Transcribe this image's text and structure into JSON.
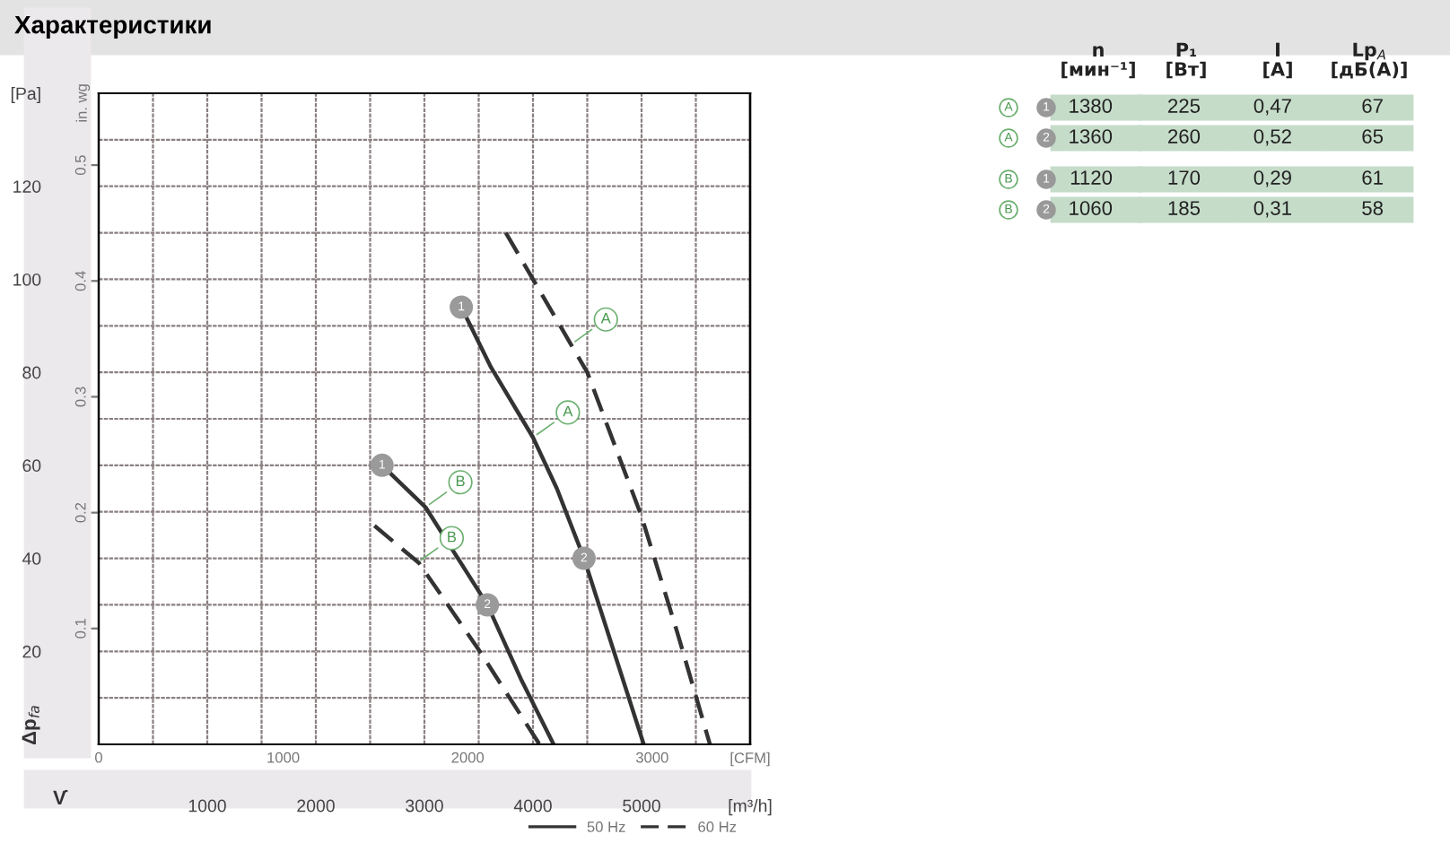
{
  "chart_data": [
    {
      "type": "line",
      "title": "Характеристики",
      "xlabel": "V̇",
      "ylabel": "Δp$_{fa}$",
      "y2label": "in. wg",
      "x2label": "[CFM]",
      "xlim": [
        0,
        6000
      ],
      "xticks": [
        {
          "value": 500,
          "label": null
        },
        1000,
        {
          "value": 1500,
          "label": null
        },
        2000,
        {
          "value": 2500,
          "label": null
        },
        3000,
        {
          "value": 3500,
          "label": null
        },
        4000,
        {
          "value": 4500,
          "label": null
        },
        5000,
        {
          "value": 5500,
          "label": null
        },
        {
          "value": 6000,
          "label": "[m³/h]"
        }
      ],
      "x2lim": [
        0,
        3531
      ],
      "x2ticks": [
        0,
        1000,
        2000,
        3000
      ],
      "ylim": [
        0,
        140
      ],
      "yticks": [
        {
          "value": 10,
          "label": null
        },
        20,
        {
          "value": 30,
          "label": null
        },
        40,
        {
          "value": 50,
          "label": null
        },
        60,
        {
          "value": 70,
          "label": null
        },
        80,
        {
          "value": 90,
          "label": null
        },
        100,
        {
          "value": 110,
          "label": null
        },
        120,
        {
          "value": 130,
          "label": null
        },
        {
          "value": 140,
          "label": "[Pa]"
        }
      ],
      "y2lim": [
        0,
        0.562
      ],
      "y2ticks": [
        0.1,
        0.2,
        0.3,
        0.4,
        0.5
      ],
      "grid": true,
      "legend": "bottom right",
      "series": [
        {
          "name": "50 Hz",
          "type": "line",
          "line_style": "solid",
          "color": "#333333",
          "x": [
            3340,
            3615,
            4000,
            4220,
            4470,
            5020
          ],
          "values": [
            94,
            81,
            66,
            55,
            40,
            0
          ]
        },
        {
          "name": "60 Hz",
          "type": "line",
          "line_style": "dashed",
          "color": "#333333",
          "x": [
            3750,
            4100,
            4500,
            5000,
            5330,
            5630
          ],
          "values": [
            110,
            96,
            80,
            49,
            24,
            0
          ]
        },
        {
          "type": "line",
          "line_style": "solid",
          "color": "#333333",
          "x": [
            2610,
            3010,
            3580,
            3890,
            4190
          ],
          "values": [
            60,
            51,
            30,
            14,
            0
          ]
        },
        {
          "type": "line",
          "line_style": "dashed",
          "color": "#333333",
          "x": [
            2540,
            2950,
            3510,
            4060
          ],
          "values": [
            47,
            39,
            20,
            0
          ]
        },
        {
          "type": "scatter",
          "marker": "circle",
          "color": "#9a9a9a",
          "x": [
            3340,
            4470,
            2610,
            3580
          ],
          "values": [
            94,
            40,
            60,
            30
          ]
        }
      ],
      "annotations": [
        {
          "text": "A",
          "x": 4000,
          "y": 66
        },
        {
          "text": "A",
          "x": 4350,
          "y": 86
        },
        {
          "text": "B",
          "x": 3010,
          "y": 51
        },
        {
          "text": "B",
          "x": 2930,
          "y": 39
        },
        {
          "text": "1",
          "x": 3340,
          "y": 94
        },
        {
          "text": "2",
          "x": 4470,
          "y": 40
        },
        {
          "text": "1",
          "x": 2610,
          "y": 60
        },
        {
          "text": "2",
          "x": 3580,
          "y": 30
        }
      ]
    },
    {
      "type": "other",
      "categories": [
        "A",
        "A",
        "B",
        "B"
      ],
      "y2_categories": [
        "1",
        "2",
        "1",
        "2"
      ],
      "series": [
        {
          "name": "n\n[мин⁻¹]",
          "color": "#c5dcc9",
          "values": [
            1380,
            1360,
            1120,
            1060
          ],
          "value_labels": [
            "1380",
            "1360",
            "1120",
            "1060"
          ]
        },
        {
          "name": "P₁\n[Вт]",
          "color": "#c5dcc9",
          "values": [
            225,
            260,
            170,
            185
          ],
          "value_labels": [
            "225",
            "260",
            "170",
            "185"
          ]
        },
        {
          "name": "I\n[A]",
          "color": "#c5dcc9",
          "values": [
            0.47,
            0.52,
            0.29,
            0.31
          ],
          "value_labels": [
            "0,47",
            "0,52",
            "0,29",
            "0,31"
          ]
        },
        {
          "name": "Lp$_{A}$\n[дБ(А)]",
          "color": "#c5dcc9",
          "values": [
            67,
            65,
            61,
            58
          ],
          "value_labels": [
            "67",
            "65",
            "61",
            "58"
          ]
        }
      ]
    }
  ]
}
